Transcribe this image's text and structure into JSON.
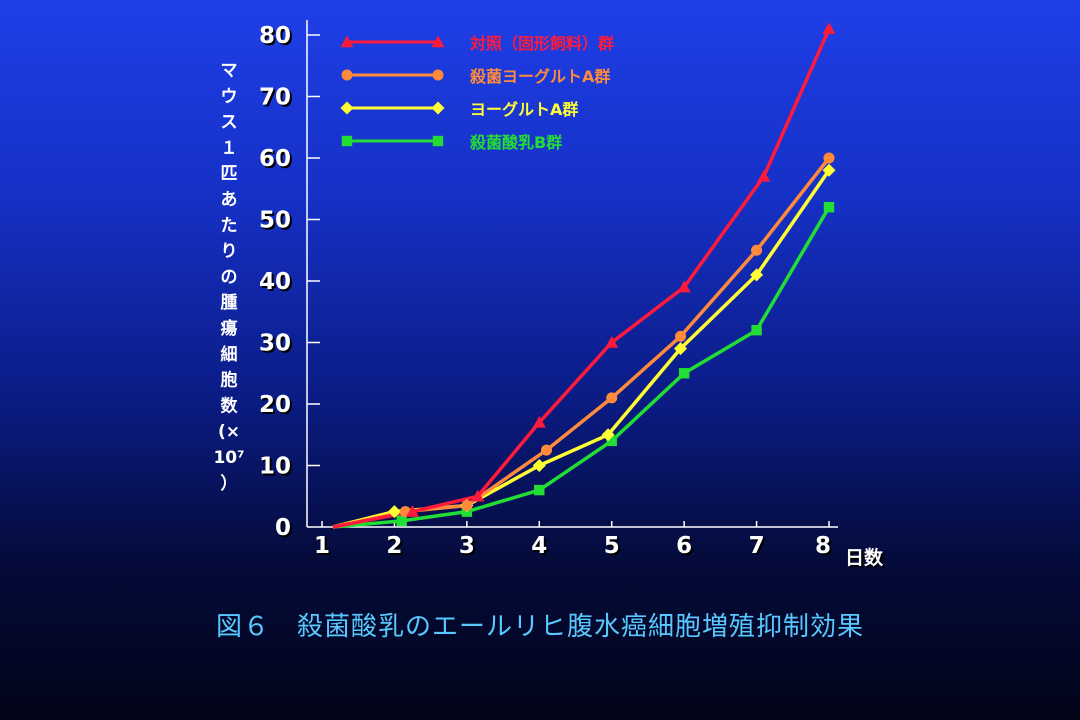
{
  "chart_data": {
    "type": "line",
    "title": "図６　殺菌酸乳のエールリヒ腹水癌細胞増殖抑制効果",
    "xlabel": "日数",
    "ylabel": "マウス１匹あたりの腫瘍細胞数（×10⁷）",
    "ylabel_chars": [
      "マ",
      "ウ",
      "ス",
      "１",
      "匹",
      "あ",
      "た",
      "り",
      "の",
      "腫",
      "瘍",
      "細",
      "胞",
      "数",
      "(×",
      "10⁷",
      "）"
    ],
    "xlim": [
      1,
      8
    ],
    "ylim": [
      0,
      80
    ],
    "x_ticks": [
      1,
      2,
      3,
      4,
      5,
      6,
      7,
      8
    ],
    "y_ticks": [
      0,
      10,
      20,
      30,
      40,
      50,
      60,
      70,
      80
    ],
    "legend_position": "top-left",
    "series": [
      {
        "name": "対照（固形飼料）群",
        "color": "#ff1a3c",
        "marker": "triangle",
        "points": [
          [
            1.15,
            0
          ],
          [
            2.25,
            2.5
          ],
          [
            3.15,
            5
          ],
          [
            4.0,
            17
          ],
          [
            5.0,
            30
          ],
          [
            6.0,
            39
          ],
          [
            7.1,
            57
          ],
          [
            8.0,
            81
          ]
        ]
      },
      {
        "name": "殺菌ヨーグルトA群",
        "color": "#ff8a3c",
        "marker": "circle",
        "points": [
          [
            1.15,
            0
          ],
          [
            2.15,
            2.5
          ],
          [
            3.0,
            3.5
          ],
          [
            4.1,
            12.5
          ],
          [
            5.0,
            21
          ],
          [
            5.95,
            31
          ],
          [
            7.0,
            45
          ],
          [
            8.0,
            60
          ]
        ]
      },
      {
        "name": "ヨーグルトA群",
        "color": "#ffff33",
        "marker": "diamond",
        "points": [
          [
            1.15,
            0
          ],
          [
            2.0,
            2.5
          ],
          [
            3.0,
            3.5
          ],
          [
            4.0,
            10
          ],
          [
            4.95,
            15
          ],
          [
            5.95,
            29
          ],
          [
            7.0,
            41
          ],
          [
            8.0,
            58
          ]
        ]
      },
      {
        "name": "殺菌酸乳B群",
        "color": "#22dd33",
        "marker": "square",
        "points": [
          [
            1.15,
            0
          ],
          [
            2.1,
            1
          ],
          [
            3.0,
            2.5
          ],
          [
            4.0,
            6
          ],
          [
            5.0,
            14
          ],
          [
            6.0,
            25
          ],
          [
            7.0,
            32
          ],
          [
            8.0,
            52
          ]
        ]
      }
    ]
  }
}
